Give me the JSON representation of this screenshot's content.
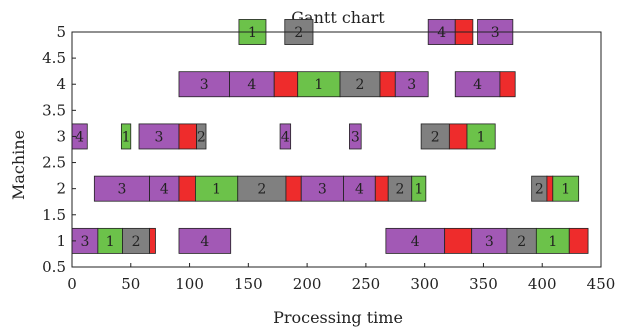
{
  "chart_data": {
    "type": "gantt",
    "title": "Gantt chart",
    "xlabel": "Processing time",
    "ylabel": "Machine",
    "xlim": [
      0,
      450
    ],
    "ylim": [
      0.5,
      5
    ],
    "xticks": [
      0,
      50,
      100,
      150,
      200,
      250,
      300,
      350,
      400,
      450
    ],
    "yticks": [
      0.5,
      1,
      1.5,
      2,
      2.5,
      3,
      3.5,
      4,
      4.5,
      5
    ],
    "ytick_labels": [
      "0.5",
      "1",
      "1.5",
      "2",
      "2.5",
      "3",
      "3.5",
      "4",
      "4.5",
      "5"
    ],
    "colors": {
      "1": "#6cc24a",
      "2": "#808080",
      "3": "#a259b5",
      "4": "#a259b5",
      "setup": "#ee2c2c"
    },
    "tasks": [
      {
        "machine": 1,
        "job": "3",
        "start": 0,
        "end": 22
      },
      {
        "machine": 1,
        "job": "1",
        "start": 22,
        "end": 43
      },
      {
        "machine": 1,
        "job": "2",
        "start": 43,
        "end": 66
      },
      {
        "machine": 1,
        "job": "",
        "start": 66,
        "end": 71,
        "setup": true
      },
      {
        "machine": 1,
        "job": "4",
        "start": 91,
        "end": 135
      },
      {
        "machine": 1,
        "job": "4",
        "start": 267,
        "end": 317
      },
      {
        "machine": 1,
        "job": "",
        "start": 317,
        "end": 340,
        "setup": true
      },
      {
        "machine": 1,
        "job": "3",
        "start": 340,
        "end": 370
      },
      {
        "machine": 1,
        "job": "2",
        "start": 370,
        "end": 395
      },
      {
        "machine": 1,
        "job": "1",
        "start": 395,
        "end": 423
      },
      {
        "machine": 1,
        "job": "",
        "start": 423,
        "end": 439,
        "setup": true
      },
      {
        "machine": 2,
        "job": "3",
        "start": 19,
        "end": 66
      },
      {
        "machine": 2,
        "job": "4",
        "start": 66,
        "end": 91
      },
      {
        "machine": 2,
        "job": "",
        "start": 91,
        "end": 105,
        "setup": true
      },
      {
        "machine": 2,
        "job": "1",
        "start": 105,
        "end": 141
      },
      {
        "machine": 2,
        "job": "2",
        "start": 141,
        "end": 182
      },
      {
        "machine": 2,
        "job": "",
        "start": 182,
        "end": 195,
        "setup": true
      },
      {
        "machine": 2,
        "job": "3",
        "start": 195,
        "end": 231
      },
      {
        "machine": 2,
        "job": "4",
        "start": 231,
        "end": 258
      },
      {
        "machine": 2,
        "job": "",
        "start": 258,
        "end": 269,
        "setup": true
      },
      {
        "machine": 2,
        "job": "2",
        "start": 269,
        "end": 289
      },
      {
        "machine": 2,
        "job": "1",
        "start": 289,
        "end": 301
      },
      {
        "machine": 2,
        "job": "2",
        "start": 391,
        "end": 404
      },
      {
        "machine": 2,
        "job": "",
        "start": 404,
        "end": 409,
        "setup": true
      },
      {
        "machine": 2,
        "job": "1",
        "start": 409,
        "end": 431
      },
      {
        "machine": 3,
        "job": "4",
        "start": 0,
        "end": 13
      },
      {
        "machine": 3,
        "job": "1",
        "start": 42,
        "end": 50
      },
      {
        "machine": 3,
        "job": "3",
        "start": 57,
        "end": 91
      },
      {
        "machine": 3,
        "job": "",
        "start": 91,
        "end": 106,
        "setup": true
      },
      {
        "machine": 3,
        "job": "2",
        "start": 106,
        "end": 114
      },
      {
        "machine": 3,
        "job": "4",
        "start": 177,
        "end": 186
      },
      {
        "machine": 3,
        "job": "3",
        "start": 236,
        "end": 246
      },
      {
        "machine": 3,
        "job": "2",
        "start": 297,
        "end": 321
      },
      {
        "machine": 3,
        "job": "",
        "start": 321,
        "end": 336,
        "setup": true
      },
      {
        "machine": 3,
        "job": "1",
        "start": 336,
        "end": 360
      },
      {
        "machine": 4,
        "job": "3",
        "start": 91,
        "end": 134
      },
      {
        "machine": 4,
        "job": "4",
        "start": 134,
        "end": 172
      },
      {
        "machine": 4,
        "job": "",
        "start": 172,
        "end": 192,
        "setup": true
      },
      {
        "machine": 4,
        "job": "1",
        "start": 192,
        "end": 228
      },
      {
        "machine": 4,
        "job": "2",
        "start": 228,
        "end": 262
      },
      {
        "machine": 4,
        "job": "",
        "start": 262,
        "end": 275,
        "setup": true
      },
      {
        "machine": 4,
        "job": "3",
        "start": 275,
        "end": 303
      },
      {
        "machine": 4,
        "job": "4",
        "start": 326,
        "end": 364
      },
      {
        "machine": 4,
        "job": "",
        "start": 364,
        "end": 377,
        "setup": true
      },
      {
        "machine": 5,
        "job": "1",
        "start": 142,
        "end": 165
      },
      {
        "machine": 5,
        "job": "2",
        "start": 181,
        "end": 205
      },
      {
        "machine": 5,
        "job": "4",
        "start": 303,
        "end": 326
      },
      {
        "machine": 5,
        "job": "",
        "start": 326,
        "end": 341,
        "setup": true
      },
      {
        "machine": 5,
        "job": "3",
        "start": 345,
        "end": 375
      }
    ]
  }
}
